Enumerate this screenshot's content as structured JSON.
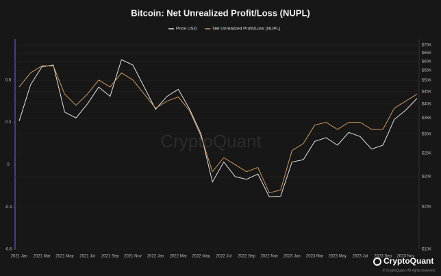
{
  "chart_data": {
    "type": "line",
    "title": "Bitcoin: Net Unrealized Profit/Loss (NUPL)",
    "watermark": "CryptoQuant",
    "brand": "CryptoQuant",
    "copyright": "© CryptoQuant. All rights reserved.",
    "categories": [
      "2021 Jan",
      null,
      "2021 Mar",
      null,
      "2021 May",
      null,
      "2021 Jul",
      null,
      "2021 Sep",
      null,
      "2021 Nov",
      null,
      "2022 Jan",
      null,
      "2022 Mar",
      null,
      "2022 May",
      null,
      "2022 Jul",
      null,
      "2022 Sep",
      null,
      "2022 Nov",
      null,
      "2023 Jan",
      null,
      "2023 Mar",
      null,
      "2023 May",
      null,
      "2023 Jul",
      null,
      "2023 Sep",
      null,
      "2023 Nov",
      null
    ],
    "series": [
      {
        "name": "Price USD",
        "color": "#e6e6e6",
        "axis": "y2",
        "values": [
          34000,
          48000,
          57000,
          58000,
          37000,
          35000,
          40000,
          47000,
          43000,
          61000,
          58000,
          47000,
          38000,
          43000,
          46000,
          38000,
          30000,
          19000,
          23000,
          20000,
          19500,
          20500,
          16500,
          16600,
          23000,
          23500,
          28000,
          29000,
          27000,
          30500,
          29300,
          26000,
          27000,
          34500,
          37700,
          42200
        ]
      },
      {
        "name": "Net Unrealized Profit/Loss (NUPL)",
        "color": "#d49a5a",
        "values": [
          0.55,
          0.65,
          0.7,
          0.7,
          0.5,
          0.42,
          0.5,
          0.6,
          0.55,
          0.65,
          0.6,
          0.5,
          0.4,
          0.45,
          0.48,
          0.38,
          0.2,
          -0.05,
          0.05,
          0.0,
          -0.05,
          -0.02,
          -0.2,
          -0.18,
          0.1,
          0.15,
          0.28,
          0.3,
          0.25,
          0.3,
          0.3,
          0.25,
          0.25,
          0.4,
          0.45,
          0.5
        ]
      }
    ],
    "ylim": [
      -0.6,
      0.89
    ],
    "yticks": [
      -0.6,
      -0.3,
      0,
      0.3,
      0.6
    ],
    "y2lim": [
      10000,
      74300
    ],
    "y2scale": "log",
    "y2ticks": [
      {
        "value": 10000,
        "label": "$10K"
      },
      {
        "value": 15000,
        "label": "$15K"
      },
      {
        "value": 20000,
        "label": "$20K"
      },
      {
        "value": 25000,
        "label": "$25K"
      },
      {
        "value": 30000,
        "label": "$30K"
      },
      {
        "value": 35000,
        "label": "$35K"
      },
      {
        "value": 40000,
        "label": "$40K"
      },
      {
        "value": 45000,
        "label": "$45K"
      },
      {
        "value": 50000,
        "label": "$50K"
      },
      {
        "value": 55000,
        "label": "$55K"
      },
      {
        "value": 60000,
        "label": "$60K"
      },
      {
        "value": 65000,
        "label": "$65K"
      },
      {
        "value": 70000,
        "label": "$70K"
      }
    ],
    "grid": true,
    "legend": "top"
  }
}
